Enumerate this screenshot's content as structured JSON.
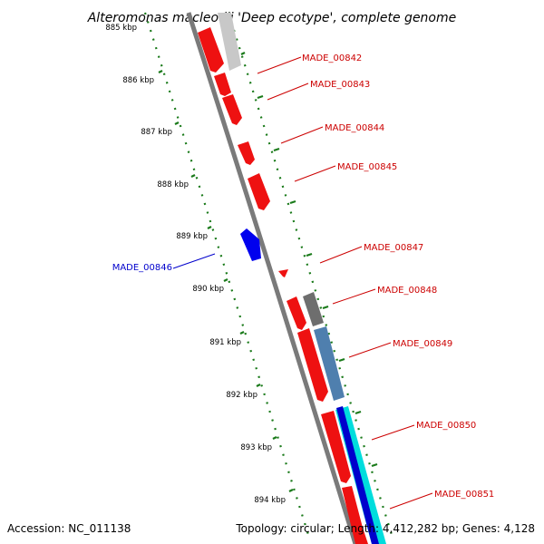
{
  "title": "Alteromonas macleodii 'Deep ecotype', complete genome",
  "footer": {
    "accession": "Accession: NC_011138",
    "stats": "Topology: circular; Length: 4,412,282 bp; Genes: 4,128"
  },
  "colors": {
    "forward_gene": "#ff0000",
    "reverse_gene": "#0000ff",
    "label_forward": "#cc0000",
    "label_reverse": "#0000cc",
    "tick_green": "#1a7a1a",
    "backbone": "#808080"
  },
  "scale_labels": [
    "885 kbp",
    "886 kbp",
    "887 kbp",
    "888 kbp",
    "889 kbp",
    "890 kbp",
    "891 kbp",
    "892 kbp",
    "893 kbp",
    "894 kbp"
  ],
  "gene_labels": [
    {
      "text": "MADE_00842",
      "strand": "forward"
    },
    {
      "text": "MADE_00843",
      "strand": "forward"
    },
    {
      "text": "MADE_00844",
      "strand": "forward"
    },
    {
      "text": "MADE_00845",
      "strand": "forward"
    },
    {
      "text": "MADE_00847",
      "strand": "forward"
    },
    {
      "text": "MADE_00848",
      "strand": "forward"
    },
    {
      "text": "MADE_00849",
      "strand": "forward"
    },
    {
      "text": "MADE_00850",
      "strand": "forward"
    },
    {
      "text": "MADE_00851",
      "strand": "forward"
    },
    {
      "text": "MADE_00846",
      "strand": "reverse"
    }
  ]
}
